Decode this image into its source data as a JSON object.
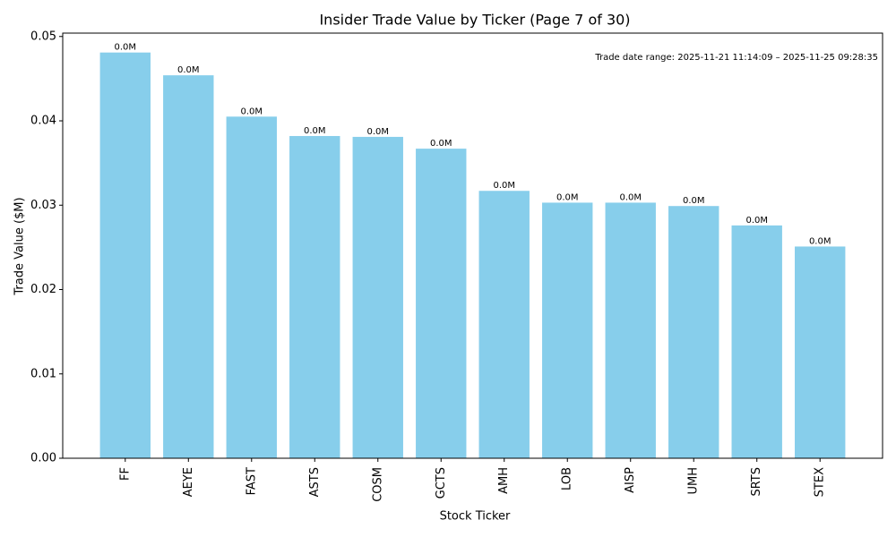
{
  "chart_data": {
    "type": "bar",
    "title": "Insider Trade Value by Ticker (Page 7 of 30)",
    "x_label": "Stock Ticker",
    "y_label": "Trade Value ($M)",
    "annotation": "Trade date range: 2025-11-21 11:14:09 – 2025-11-25 09:28:35",
    "categories": [
      "FF",
      "AEYE",
      "FAST",
      "ASTS",
      "COSM",
      "GCTS",
      "AMH",
      "LOB",
      "AISP",
      "UMH",
      "SRTS",
      "STEX"
    ],
    "values": [
      0.0481,
      0.0454,
      0.0405,
      0.0382,
      0.0381,
      0.0367,
      0.0317,
      0.0303,
      0.0303,
      0.0299,
      0.0276,
      0.0251
    ],
    "value_labels": [
      "0.0M",
      "0.0M",
      "0.0M",
      "0.0M",
      "0.0M",
      "0.0M",
      "0.0M",
      "0.0M",
      "0.0M",
      "0.0M",
      "0.0M",
      "0.0M"
    ],
    "color": "#87ceeb",
    "ylim": [
      0,
      0.0504
    ],
    "yticks": [
      {
        "value": 0,
        "label": "0.00"
      },
      0.01,
      0.02,
      0.03,
      0.04,
      0.05
    ],
    "grid": false
  }
}
